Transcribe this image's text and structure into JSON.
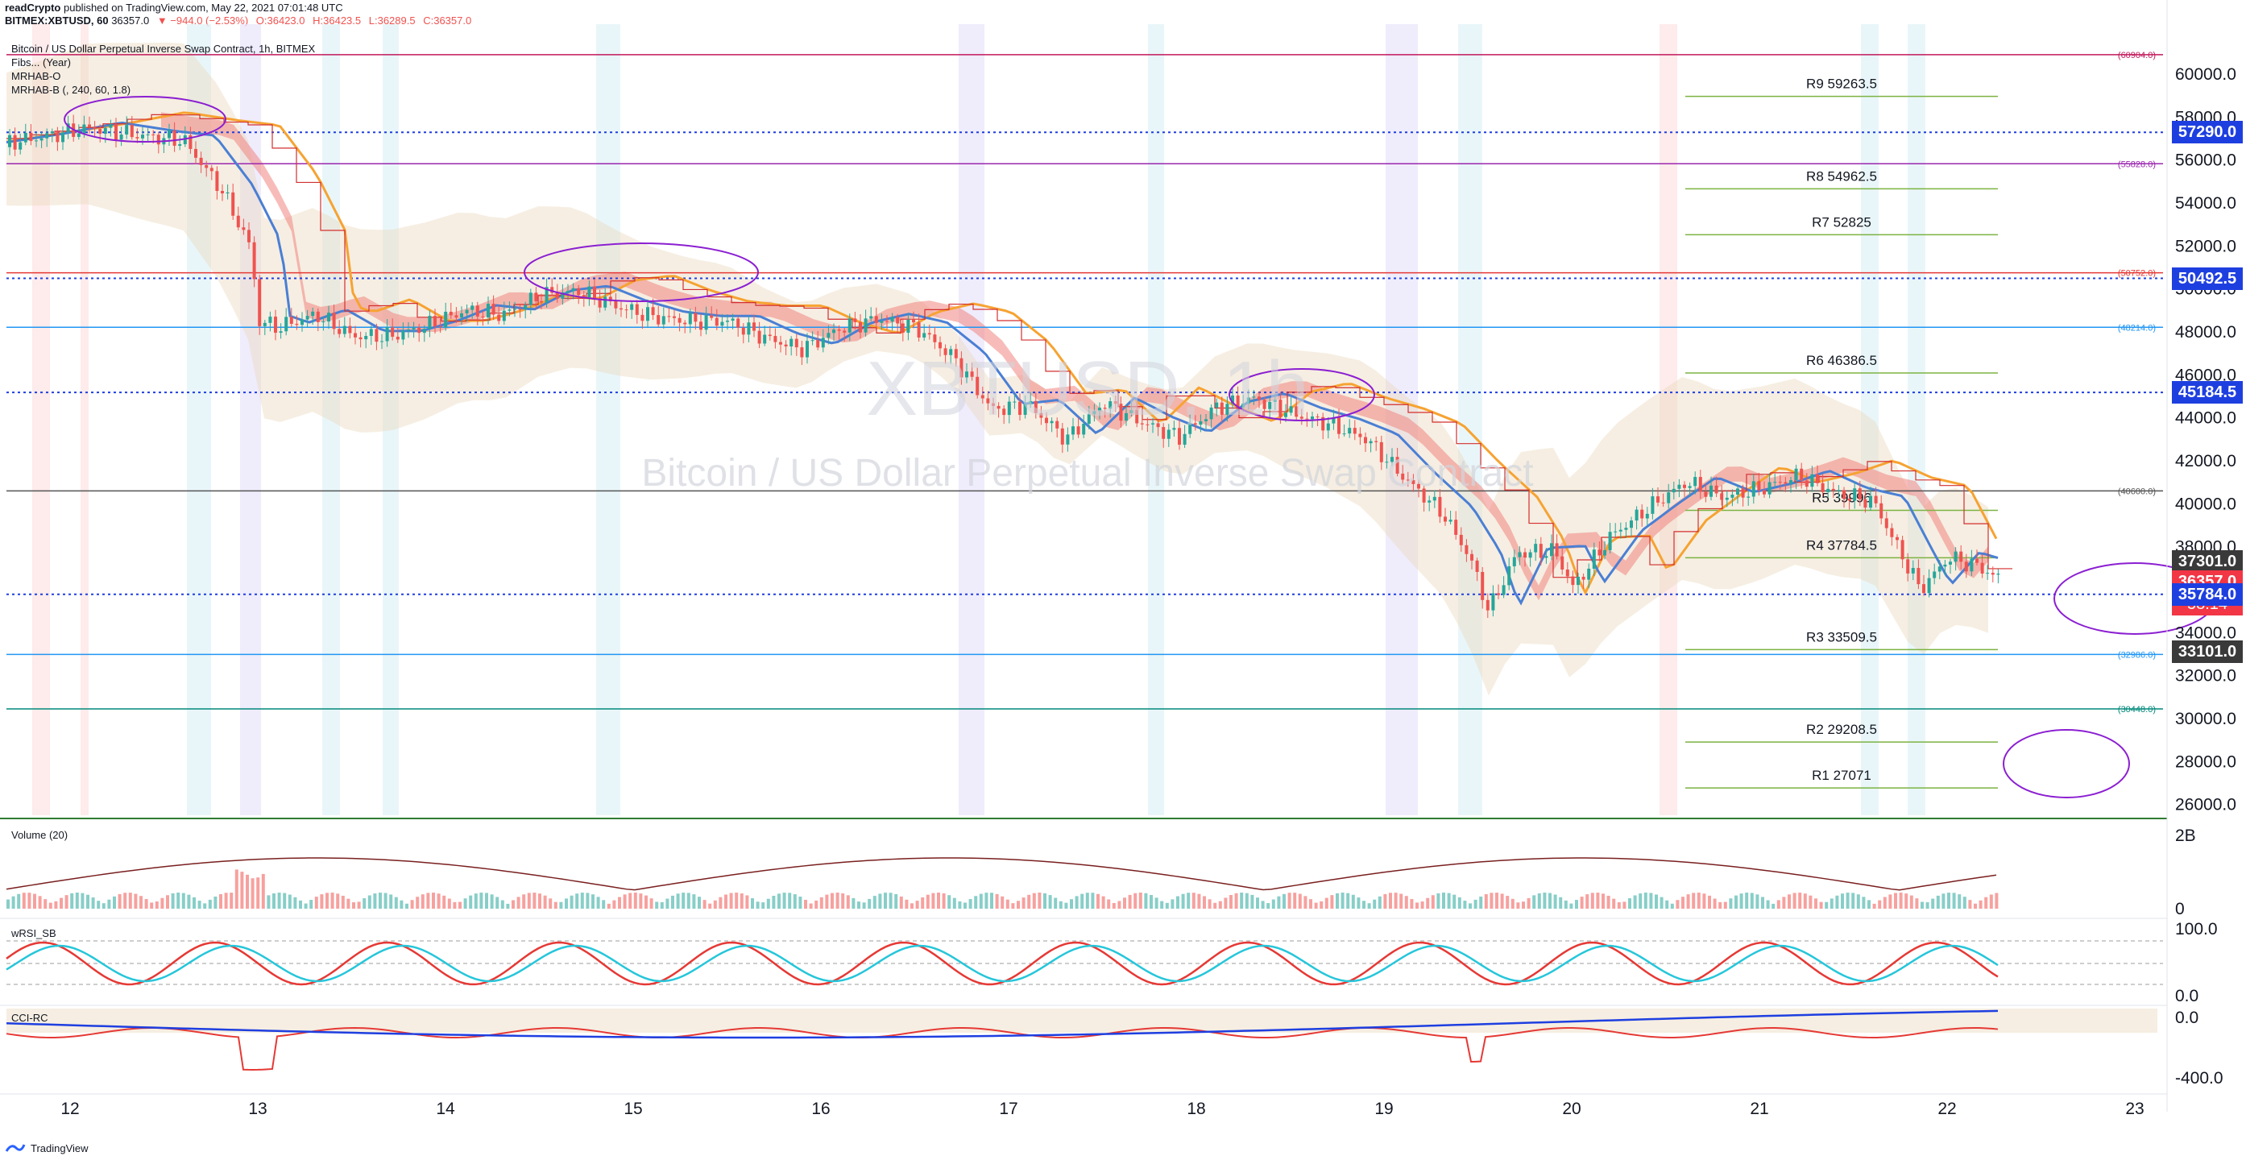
{
  "header": {
    "publisher": "readCrypto",
    "published_text": "published on TradingView.com, May 22, 2021 07:01:48 UTC",
    "symbol": "BITMEX:XBTUSD, 60",
    "last": "36357.0",
    "change": "▼ −944.0 (−2.53%)",
    "open": "O:36423.0",
    "high": "H:36423.5",
    "low": "L:36289.5",
    "close": "C:36357.0"
  },
  "legend": {
    "title": "Bitcoin / US Dollar Perpetual Inverse Swap Contract, 1h, BITMEX",
    "items": [
      "Fibs... (Year)",
      "MRHAB-O",
      "MRHAB-B (, 240, 60, 1.8)"
    ]
  },
  "watermark": {
    "symbol": "XBTUSD, 1h",
    "description": "Bitcoin / US Dollar Perpetual Inverse Swap Contract"
  },
  "pane_labels": {
    "volume": "Volume (20)",
    "wrsi": "wRSI_SB",
    "cci": "CCI-RC"
  },
  "colors": {
    "up": "#26a69a",
    "down": "#ef5350",
    "ema_blue": "#4a7fd4",
    "ema_orange": "#f6a332",
    "cloud": "#ecd9bf",
    "red_band": "#f0857f",
    "badge_blue": "#1e3fe0",
    "badge_gray": "#3a3a3a",
    "badge_red": "#f23645",
    "annotation": "#8b1fd1"
  },
  "footer": {
    "brand": "TradingView"
  },
  "chart_data": {
    "type": "candlestick",
    "title": "Bitcoin / US Dollar Perpetual Inverse Swap Contract, 1h, BITMEX",
    "price_axis": {
      "ticks": [
        "60000.0",
        "58000.0",
        "56000.0",
        "54000.0",
        "52000.0",
        "50000.0",
        "48000.0",
        "46000.0",
        "44000.0",
        "42000.0",
        "40000.0",
        "38000.0",
        "36000.0",
        "34000.0",
        "32000.0",
        "30000.0",
        "28000.0",
        "26000.0"
      ],
      "ylim": [
        25500,
        61200
      ]
    },
    "time_axis": {
      "ticks": [
        "12",
        "13",
        "14",
        "15",
        "16",
        "17",
        "18",
        "19",
        "20",
        "21",
        "22",
        "23"
      ]
    },
    "price_badges": [
      {
        "label": "57290.0",
        "value": 57290,
        "color": "blue"
      },
      {
        "label": "50492.5",
        "value": 50492.5,
        "color": "blue"
      },
      {
        "label": "45184.5",
        "value": 45184.5,
        "color": "blue"
      },
      {
        "label": "37301.0",
        "value": 37301,
        "color": "gray"
      },
      {
        "label": "36357.0",
        "value": 36357,
        "color": "red",
        "countdown": "58:14"
      },
      {
        "label": "35784.0",
        "value": 35784,
        "color": "blue"
      },
      {
        "label": "33101.0",
        "value": 33101,
        "color": "gray"
      }
    ],
    "fib_levels": [
      {
        "label": "(60904.0)",
        "value": 60904,
        "color": "#c2185b"
      },
      {
        "label": "(55828.0)",
        "value": 55828,
        "color": "#9c27b0"
      },
      {
        "label": "(50752.0)",
        "value": 50752,
        "color": "#e53935"
      },
      {
        "label": "(48214.0)",
        "value": 48214,
        "color": "#2196f3"
      },
      {
        "label": "(40600.0)",
        "value": 40600,
        "color": "#555555"
      },
      {
        "label": "(32986.0)",
        "value": 32986,
        "color": "#2196f3"
      },
      {
        "label": "(30448.0)",
        "value": 30448,
        "color": "#00897b"
      }
    ],
    "pivots": [
      {
        "label": "R9 59263.5",
        "value": 59263.5
      },
      {
        "label": "R8 54962.5",
        "value": 54962.5
      },
      {
        "label": "R7 52825",
        "value": 52825
      },
      {
        "label": "R6 46386.5",
        "value": 46386.5
      },
      {
        "label": "R5 39996",
        "value": 39996
      },
      {
        "label": "R4 37784.5",
        "value": 37784.5
      },
      {
        "label": "R3 33509.5",
        "value": 33509.5
      },
      {
        "label": "R2 29208.5",
        "value": 29208.5
      },
      {
        "label": "R1 27071",
        "value": 27071
      }
    ],
    "close_path": [
      [
        11.5,
        56600
      ],
      [
        11.8,
        57000
      ],
      [
        12.1,
        57500
      ],
      [
        12.4,
        57100
      ],
      [
        12.6,
        56900
      ],
      [
        12.8,
        54600
      ],
      [
        12.95,
        52000
      ],
      [
        13.0,
        48500
      ],
      [
        13.1,
        48200
      ],
      [
        13.3,
        48800
      ],
      [
        13.5,
        47800
      ],
      [
        13.7,
        47800
      ],
      [
        13.9,
        48300
      ],
      [
        14.1,
        49000
      ],
      [
        14.3,
        48800
      ],
      [
        14.5,
        49700
      ],
      [
        14.7,
        49900
      ],
      [
        14.9,
        49200
      ],
      [
        15.1,
        48700
      ],
      [
        15.3,
        48500
      ],
      [
        15.5,
        48500
      ],
      [
        15.7,
        47700
      ],
      [
        15.9,
        47200
      ],
      [
        16.1,
        48200
      ],
      [
        16.3,
        48600
      ],
      [
        16.5,
        48200
      ],
      [
        16.7,
        46800
      ],
      [
        16.9,
        44400
      ],
      [
        17.1,
        44600
      ],
      [
        17.3,
        43000
      ],
      [
        17.5,
        44700
      ],
      [
        17.7,
        43800
      ],
      [
        17.9,
        43100
      ],
      [
        18.1,
        44500
      ],
      [
        18.3,
        44900
      ],
      [
        18.5,
        44200
      ],
      [
        18.7,
        43700
      ],
      [
        18.9,
        43000
      ],
      [
        19.1,
        41200
      ],
      [
        19.3,
        39600
      ],
      [
        19.45,
        37500
      ],
      [
        19.55,
        35000
      ],
      [
        19.7,
        37700
      ],
      [
        19.9,
        37800
      ],
      [
        20.0,
        36100
      ],
      [
        20.2,
        38500
      ],
      [
        20.4,
        39800
      ],
      [
        20.6,
        41000
      ],
      [
        20.8,
        40300
      ],
      [
        21.0,
        40700
      ],
      [
        21.2,
        41300
      ],
      [
        21.4,
        40500
      ],
      [
        21.6,
        40100
      ],
      [
        21.75,
        37600
      ],
      [
        21.85,
        36000
      ],
      [
        22.0,
        37500
      ],
      [
        22.15,
        37100
      ],
      [
        22.3,
        36357
      ]
    ],
    "volume_axis": {
      "ticks": [
        "2B",
        "0"
      ]
    },
    "wrsi_axis": {
      "ticks": [
        "100.0",
        "0.0"
      ]
    },
    "cci_axis": {
      "ticks": [
        "0.0",
        "-400.0"
      ]
    }
  }
}
